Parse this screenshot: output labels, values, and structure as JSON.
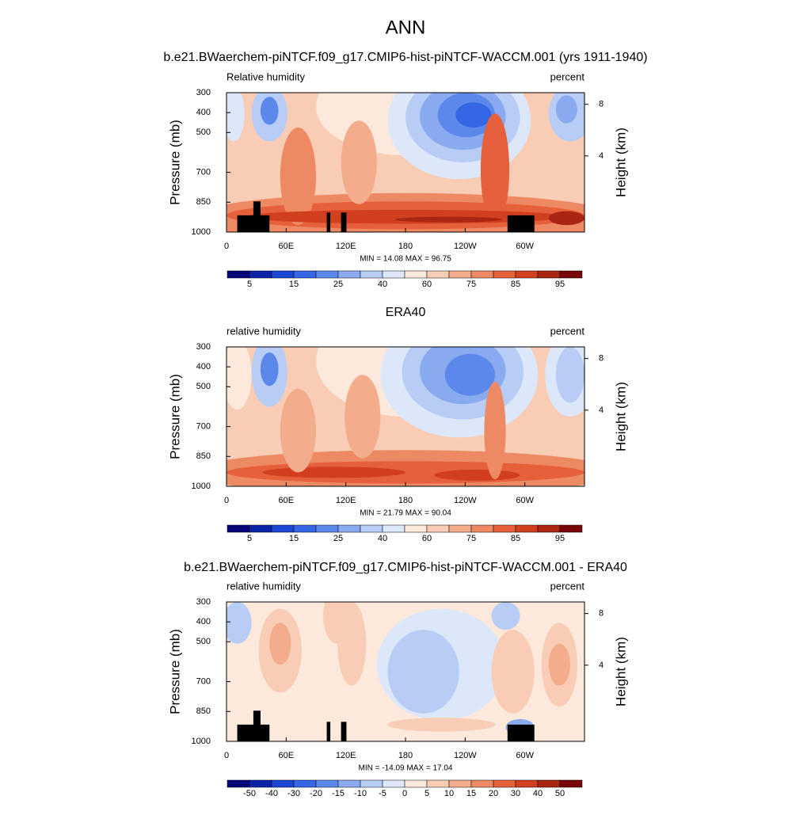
{
  "title": "ANN",
  "chart_data": [
    {
      "type": "contour",
      "title": "b.e21.BWaerchem-piNTCF.f09_g17.CMIP6-hist-piNTCF-WACCM.001 (yrs 1911-1940)",
      "left_label": "Relative humidity",
      "right_label": "percent",
      "ylabel": "Pressure (mb)",
      "y2label": "Height (km)",
      "xlim": [
        0,
        360
      ],
      "xticks": [
        0,
        {
          "value": 60,
          "label": "60E"
        },
        {
          "value": 120,
          "label": "120E"
        },
        180,
        {
          "value": 240,
          "label": "120W"
        },
        {
          "value": 300,
          "label": "60W"
        }
      ],
      "ylim": [
        1000,
        300
      ],
      "yticks": [
        300,
        400,
        500,
        700,
        850,
        1000
      ],
      "y2lim": [
        -1.9,
        8.9
      ],
      "y2ticks": [
        4,
        8
      ],
      "stats": "MIN =  14.08  MAX =  96.75",
      "colorbar_ticks": [
        5,
        15,
        25,
        40,
        60,
        75,
        85,
        95
      ],
      "colors": [
        "#06067a",
        "#0a24a8",
        "#1b46d4",
        "#3466e6",
        "#5c88ec",
        "#8aaaf0",
        "#b7cdf5",
        "#dce8fa",
        "#fde8dc",
        "#f9cdb5",
        "#f4ad8c",
        "#ee8a63",
        "#e6603b",
        "#d23f1f",
        "#ab2612",
        "#780606"
      ]
    },
    {
      "type": "contour",
      "title": "ERA40",
      "left_label": "relative humidity",
      "right_label": "percent",
      "ylabel": "Pressure (mb)",
      "y2label": "Height (km)",
      "xlim": [
        0,
        360
      ],
      "xticks": [
        0,
        {
          "value": 60,
          "label": "60E"
        },
        {
          "value": 120,
          "label": "120E"
        },
        180,
        {
          "value": 240,
          "label": "120W"
        },
        {
          "value": 300,
          "label": "60W"
        }
      ],
      "ylim": [
        1000,
        300
      ],
      "yticks": [
        300,
        400,
        500,
        700,
        850,
        1000
      ],
      "y2lim": [
        -1.9,
        8.9
      ],
      "y2ticks": [
        4,
        8
      ],
      "stats": "MIN =  21.79  MAX =  90.04",
      "colorbar_ticks": [
        5,
        15,
        25,
        40,
        60,
        75,
        85,
        95
      ],
      "colors": [
        "#06067a",
        "#0a24a8",
        "#1b46d4",
        "#3466e6",
        "#5c88ec",
        "#8aaaf0",
        "#b7cdf5",
        "#dce8fa",
        "#fde8dc",
        "#f9cdb5",
        "#f4ad8c",
        "#ee8a63",
        "#e6603b",
        "#d23f1f",
        "#ab2612",
        "#780606"
      ]
    },
    {
      "type": "contour",
      "title": "b.e21.BWaerchem-piNTCF.f09_g17.CMIP6-hist-piNTCF-WACCM.001 - ERA40",
      "left_label": "relative humidity",
      "right_label": "percent",
      "ylabel": "Pressure (mb)",
      "y2label": "Height (km)",
      "xlim": [
        0,
        360
      ],
      "xticks": [
        0,
        {
          "value": 60,
          "label": "60E"
        },
        {
          "value": 120,
          "label": "120E"
        },
        180,
        {
          "value": 240,
          "label": "120W"
        },
        {
          "value": 300,
          "label": "60W"
        }
      ],
      "ylim": [
        1000,
        300
      ],
      "yticks": [
        300,
        400,
        500,
        700,
        850,
        1000
      ],
      "y2lim": [
        -1.9,
        8.9
      ],
      "y2ticks": [
        4,
        8
      ],
      "stats": "MIN = -14.09  MAX =  17.04",
      "colorbar_ticks": [
        -50,
        -40,
        -30,
        -20,
        -15,
        -10,
        -5,
        0,
        5,
        10,
        15,
        20,
        30,
        40,
        50
      ],
      "colors": [
        "#06067a",
        "#0a24a8",
        "#1b46d4",
        "#3466e6",
        "#5c88ec",
        "#8aaaf0",
        "#b7cdf5",
        "#dce8fa",
        "#fde8dc",
        "#f9cdb5",
        "#f4ad8c",
        "#ee8a63",
        "#e6603b",
        "#d23f1f",
        "#ab2612",
        "#780606"
      ]
    }
  ]
}
